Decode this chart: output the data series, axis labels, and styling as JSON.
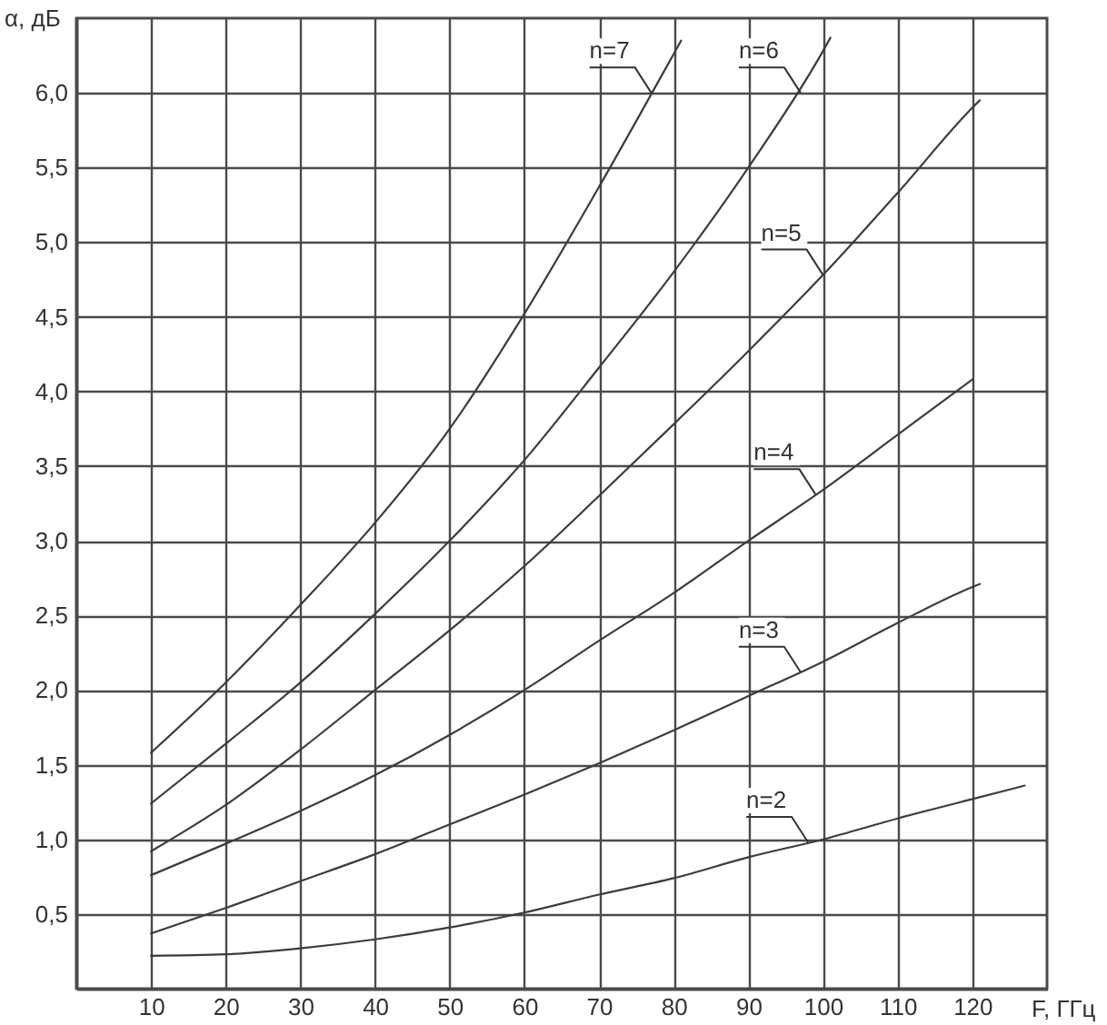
{
  "chart_data": {
    "type": "line",
    "xlabel": "F, ГГц",
    "ylabel": "α, дБ",
    "xlim": [
      0,
      130
    ],
    "ylim": [
      0,
      6.5
    ],
    "xticks": [
      10,
      20,
      30,
      40,
      50,
      60,
      70,
      80,
      90,
      100,
      110,
      120
    ],
    "yticks": [
      {
        "value": 0.5,
        "label": "0,5"
      },
      {
        "value": 1,
        "label": "1,0"
      },
      {
        "value": 1.5,
        "label": "1,5"
      },
      {
        "value": 2,
        "label": "2,0"
      },
      {
        "value": 2.5,
        "label": "2,5"
      },
      {
        "value": 3,
        "label": "3,0"
      },
      {
        "value": 3.5,
        "label": "3,5"
      },
      {
        "value": 4,
        "label": "4,0"
      },
      {
        "value": 4.5,
        "label": "4,5"
      },
      {
        "value": 5,
        "label": "5,0"
      },
      {
        "value": 5.5,
        "label": "5,5"
      },
      {
        "value": 6,
        "label": "6,0"
      }
    ],
    "grid": true,
    "series": [
      {
        "color": "#3c3c3c",
        "x": [
          10,
          20,
          30,
          40,
          50,
          60,
          70,
          80,
          90,
          100,
          110,
          120,
          127
        ],
        "values": [
          0.22,
          0.23,
          0.27,
          0.33,
          0.41,
          0.51,
          0.63,
          0.74,
          0.88,
          1.0,
          1.14,
          1.27,
          1.36
        ]
      },
      {
        "color": "#3c3c3c",
        "x": [
          10,
          20,
          30,
          40,
          50,
          60,
          70,
          80,
          90,
          100,
          110,
          120,
          121
        ],
        "values": [
          0.37,
          0.54,
          0.72,
          0.9,
          1.1,
          1.3,
          1.51,
          1.73,
          1.96,
          2.19,
          2.45,
          2.69,
          2.71
        ]
      },
      {
        "color": "#3c3c3c",
        "x": [
          10,
          20,
          30,
          40,
          50,
          60,
          70,
          80,
          90,
          100,
          110,
          120
        ],
        "values": [
          0.76,
          0.97,
          1.19,
          1.43,
          1.7,
          2.0,
          2.33,
          2.65,
          3.0,
          3.34,
          3.71,
          4.08
        ]
      },
      {
        "color": "#3c3c3c",
        "x": [
          10,
          20,
          30,
          40,
          50,
          60,
          70,
          80,
          90,
          100,
          110,
          120,
          121
        ],
        "values": [
          0.92,
          1.23,
          1.6,
          2.0,
          2.4,
          2.83,
          3.3,
          3.78,
          4.27,
          4.78,
          5.33,
          5.9,
          5.95
        ]
      },
      {
        "color": "#3c3c3c",
        "x": [
          10,
          20,
          30,
          40,
          50,
          60,
          70,
          80,
          90,
          100,
          101
        ],
        "values": [
          1.24,
          1.64,
          2.05,
          2.51,
          3.0,
          3.54,
          4.16,
          4.8,
          5.5,
          6.28,
          6.37
        ]
      },
      {
        "color": "#3c3c3c",
        "x": [
          10,
          20,
          30,
          40,
          50,
          60,
          70,
          80,
          81
        ],
        "values": [
          1.58,
          2.05,
          2.57,
          3.12,
          3.75,
          4.52,
          5.37,
          6.26,
          6.35
        ]
      }
    ],
    "annotations": [
      {
        "text": "n=7",
        "x": 77,
        "y": 6.0
      },
      {
        "text": "n=6",
        "x": 97,
        "y": 6.0
      },
      {
        "text": "n=5",
        "x": 100,
        "y": 4.78
      },
      {
        "text": "n=4",
        "x": 99,
        "y": 3.31
      },
      {
        "text": "n=3",
        "x": 97,
        "y": 2.12
      },
      {
        "text": "n=2",
        "x": 98,
        "y": 0.98
      }
    ]
  }
}
